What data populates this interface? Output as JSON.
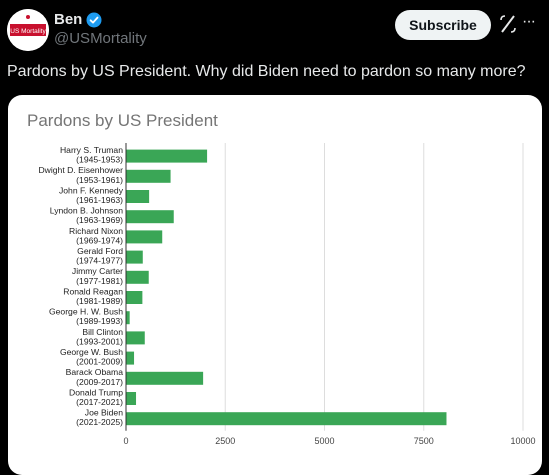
{
  "author": {
    "display_name": "Ben",
    "handle": "@USMortality",
    "avatar_text": "US Mortality",
    "verified_icon": "verified-badge-icon"
  },
  "actions": {
    "subscribe_label": "Subscribe",
    "grok_icon": "grok-icon",
    "more_label": "···"
  },
  "tweet": {
    "text": "Pardons by US President. Why did Biden need to pardon so many more?"
  },
  "colors": {
    "bar": "#3aa656",
    "verified": "#1d9bf0",
    "avatar_red": "#c8102e"
  },
  "chart_data": {
    "type": "bar",
    "orientation": "horizontal",
    "title": "Pardons by US President",
    "categories": [
      [
        "Harry S. Truman",
        "(1945-1953)"
      ],
      [
        "Dwight D. Eisenhower",
        "(1953-1961)"
      ],
      [
        "John F. Kennedy",
        "(1961-1963)"
      ],
      [
        "Lyndon B. Johnson",
        "(1963-1969)"
      ],
      [
        "Richard Nixon",
        "(1969-1974)"
      ],
      [
        "Gerald Ford",
        "(1974-1977)"
      ],
      [
        "Jimmy Carter",
        "(1977-1981)"
      ],
      [
        "Ronald Reagan",
        "(1981-1989)"
      ],
      [
        "George H. W. Bush",
        "(1989-1993)"
      ],
      [
        "Bill Clinton",
        "(1993-2001)"
      ],
      [
        "George W. Bush",
        "(2001-2009)"
      ],
      [
        "Barack Obama",
        "(2009-2017)"
      ],
      [
        "Donald Trump",
        "(2017-2021)"
      ],
      [
        "Joe Biden",
        "(2021-2025)"
      ]
    ],
    "values": [
      2030,
      1110,
      570,
      1190,
      900,
      410,
      560,
      400,
      80,
      460,
      190,
      1930,
      240,
      8060
    ],
    "xlim": [
      0,
      10000
    ],
    "xticks": [
      0,
      2500,
      5000,
      7500,
      10000
    ],
    "grid": true,
    "legend": "none"
  }
}
